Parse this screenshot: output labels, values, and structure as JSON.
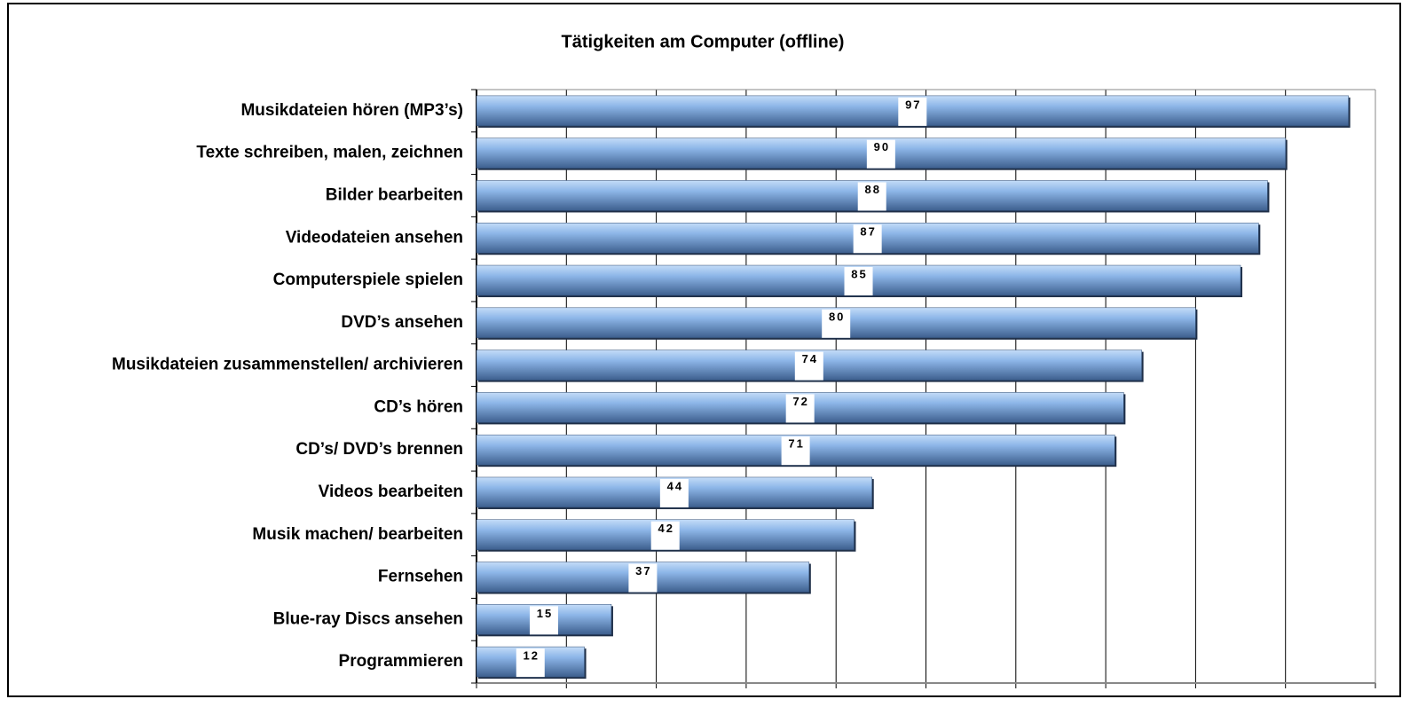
{
  "chart_data": {
    "type": "bar",
    "orientation": "horizontal",
    "title": "Tätigkeiten am Computer (offline)",
    "categories": [
      "Musikdateien hören (MP3’s)",
      "Texte schreiben, malen, zeichnen",
      "Bilder bearbeiten",
      "Videodateien ansehen",
      "Computerspiele spielen",
      "DVD’s ansehen",
      "Musikdateien zusammenstellen/ archivieren",
      "CD’s hören",
      "CD’s/ DVD’s brennen",
      "Videos bearbeiten",
      "Musik machen/ bearbeiten",
      "Fernsehen",
      "Blue-ray Discs ansehen",
      "Programmieren"
    ],
    "values": [
      97,
      90,
      88,
      87,
      85,
      80,
      74,
      72,
      71,
      44,
      42,
      37,
      15,
      12
    ],
    "color": "#6f9fd8",
    "xlim": [
      0,
      100
    ],
    "xticks": [
      0,
      10,
      20,
      30,
      40,
      50,
      60,
      70,
      80,
      90,
      100
    ],
    "grid": true
  }
}
